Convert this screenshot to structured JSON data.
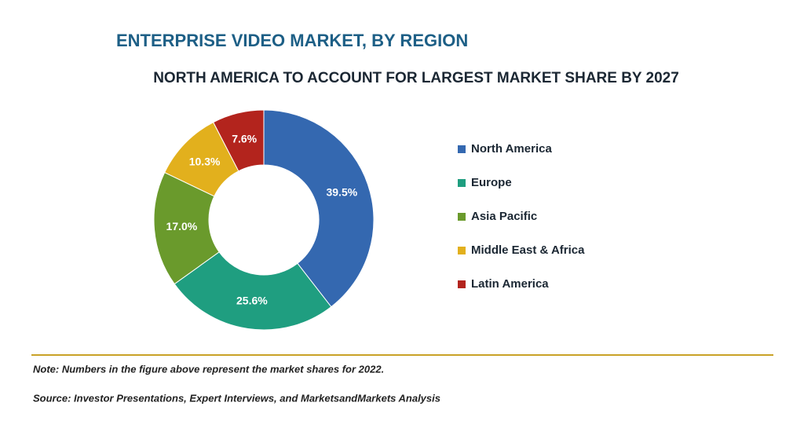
{
  "chart_data": {
    "type": "pie",
    "donut": true,
    "title": "ENTERPRISE VIDEO MARKET, BY REGION",
    "subtitle": "NORTH AMERICA TO ACCOUNT FOR LARGEST MARKET SHARE BY 2027",
    "categories": [
      "North America",
      "Europe",
      "Asia Pacific",
      "Middle East & Africa",
      "Latin America"
    ],
    "values": [
      39.5,
      25.6,
      17.0,
      10.3,
      7.6
    ],
    "value_labels": [
      "39.5%",
      "25.6%",
      "17.0%",
      "10.3%",
      "7.6%"
    ],
    "colors": [
      "#3468b0",
      "#1f9e80",
      "#6a9a2c",
      "#e2b01d",
      "#b3241d"
    ],
    "legend": "right",
    "notes": [
      "Note: Numbers in the figure above represent the market shares for 2022.",
      "Source: Investor Presentations, Expert Interviews, and MarketsandMarkets Analysis"
    ]
  }
}
